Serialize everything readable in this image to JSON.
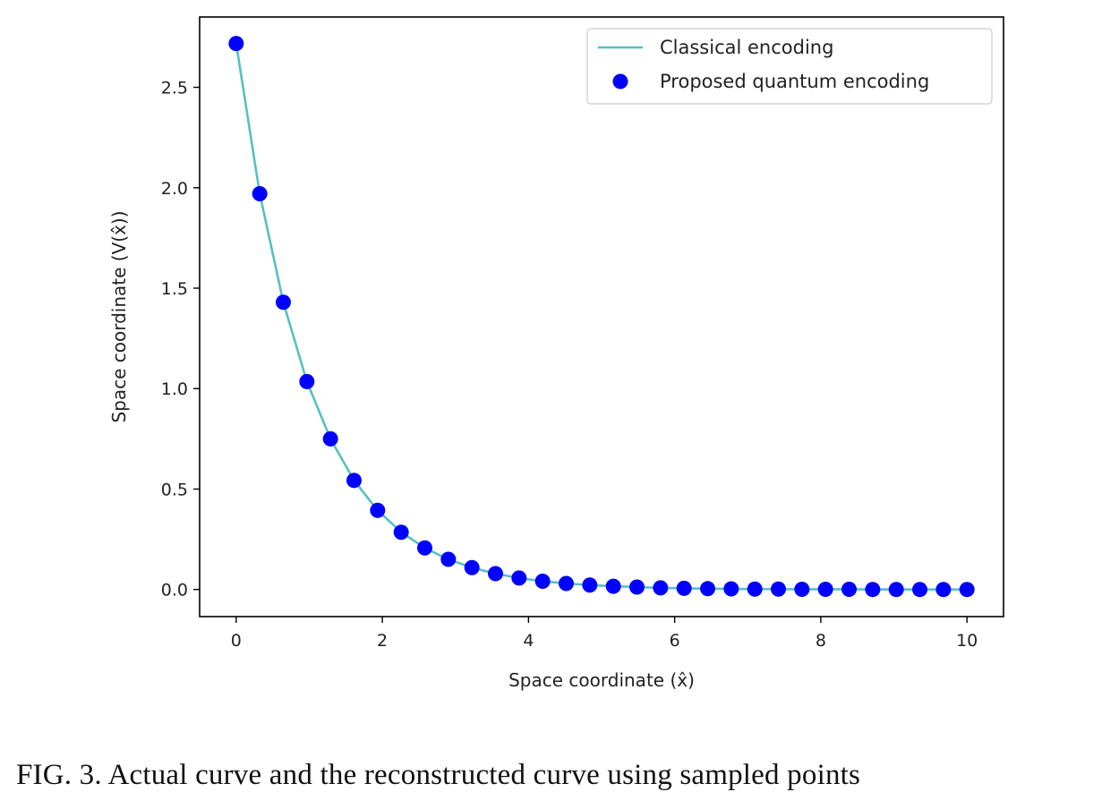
{
  "caption": "FIG. 3. Actual curve and the reconstructed curve using sampled points",
  "chart_data": {
    "type": "line",
    "title": "",
    "xlabel": "Space coordinate (x̂)",
    "ylabel": "Space coordinate (V(x̂))",
    "xlim": [
      -0.5,
      10.5
    ],
    "ylim": [
      -0.135,
      2.85
    ],
    "xticks": [
      0,
      2,
      4,
      6,
      8,
      10
    ],
    "xtick_labels": [
      "0",
      "2",
      "4",
      "6",
      "8",
      "10"
    ],
    "yticks": [
      0.0,
      0.5,
      1.0,
      1.5,
      2.0,
      2.5
    ],
    "ytick_labels": [
      "0.0",
      "0.5",
      "1.0",
      "1.5",
      "2.0",
      "2.5"
    ],
    "grid": false,
    "legend_position": "top-right",
    "x": [
      0,
      0.3226,
      0.6452,
      0.9677,
      1.2903,
      1.6129,
      1.9355,
      2.2581,
      2.5806,
      2.9032,
      3.2258,
      3.5484,
      3.871,
      4.1935,
      4.5161,
      4.8387,
      5.1613,
      5.4839,
      5.8065,
      6.129,
      6.4516,
      6.7742,
      7.0968,
      7.4194,
      7.7419,
      8.0645,
      8.3871,
      8.7097,
      9.0323,
      9.3548,
      9.6774,
      10
    ],
    "series": [
      {
        "name": "Classical encoding",
        "style": "line",
        "color": "#56c0c4",
        "values": [
          2.718,
          1.97,
          1.43,
          1.035,
          0.75,
          0.543,
          0.394,
          0.285,
          0.207,
          0.15,
          0.109,
          0.079,
          0.057,
          0.041,
          0.03,
          0.022,
          0.016,
          0.012,
          0.008,
          0.006,
          0.004,
          0.003,
          0.002,
          0.002,
          0.001,
          0.001,
          0.001,
          0.0,
          0.0,
          0.0,
          0.0,
          0.0
        ]
      },
      {
        "name": "Proposed quantum encoding",
        "style": "markers",
        "color": "#0000ff",
        "values": [
          2.718,
          1.97,
          1.43,
          1.035,
          0.75,
          0.543,
          0.394,
          0.285,
          0.207,
          0.15,
          0.109,
          0.079,
          0.057,
          0.041,
          0.03,
          0.022,
          0.016,
          0.012,
          0.008,
          0.006,
          0.004,
          0.003,
          0.002,
          0.002,
          0.001,
          0.001,
          0.001,
          0.0,
          0.0,
          0.0,
          0.0,
          0.0
        ]
      }
    ]
  }
}
